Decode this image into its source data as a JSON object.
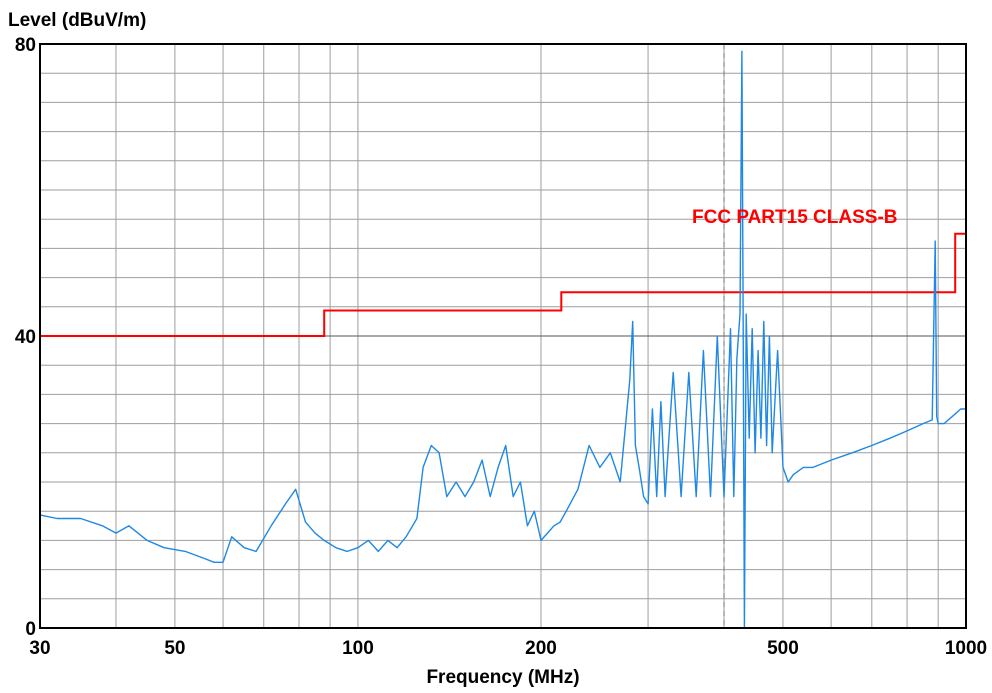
{
  "chart_data": {
    "type": "line",
    "ylabel": "Level (dBuV/m)",
    "xlabel": "Frequency (MHz)",
    "x_scale": "log",
    "xlim": [
      30,
      1000
    ],
    "ylim": [
      0,
      80
    ],
    "x_ticks": [
      "30",
      "50",
      "100",
      "200",
      "500",
      "1000"
    ],
    "y_ticks": [
      "0",
      "40",
      "80"
    ],
    "grid": true,
    "limit_line": {
      "name": "FCC PART15 CLASS-B",
      "color": "#ff0000",
      "points": [
        [
          30,
          40
        ],
        [
          88,
          40
        ],
        [
          88,
          43.5
        ],
        [
          216,
          43.5
        ],
        [
          216,
          46
        ],
        [
          960,
          46
        ],
        [
          960,
          54
        ],
        [
          1000,
          54
        ]
      ]
    },
    "marker": {
      "x": 400,
      "style": "dashed"
    },
    "series": [
      {
        "color": "#1e88e5",
        "x": [
          30,
          32,
          35,
          38,
          40,
          42,
          45,
          48,
          52,
          56,
          58,
          60,
          62,
          65,
          68,
          72,
          76,
          79,
          82,
          85,
          88,
          92,
          96,
          100,
          104,
          108,
          112,
          116,
          120,
          125,
          128,
          132,
          136,
          140,
          145,
          150,
          155,
          160,
          165,
          170,
          175,
          180,
          185,
          190,
          195,
          200,
          205,
          210,
          215,
          220,
          230,
          240,
          250,
          260,
          270,
          280,
          283,
          286,
          290,
          295,
          300,
          305,
          310,
          315,
          320,
          330,
          340,
          350,
          360,
          370,
          380,
          390,
          400,
          410,
          415,
          420,
          425,
          428,
          430,
          432,
          435,
          440,
          445,
          450,
          455,
          460,
          465,
          470,
          475,
          480,
          490,
          500,
          510,
          520,
          540,
          560,
          600,
          650,
          700,
          750,
          800,
          850,
          880,
          890,
          895,
          900,
          920,
          950,
          980,
          1000
        ],
        "values": [
          15.5,
          15,
          15,
          14,
          13,
          14,
          12,
          11,
          10.5,
          9.5,
          9,
          9,
          12.5,
          11,
          10.5,
          14,
          17,
          19,
          14.5,
          13,
          12,
          11,
          10.5,
          11,
          12,
          10.5,
          12,
          11,
          12.5,
          15,
          22,
          25,
          24,
          18,
          20,
          18,
          20,
          23,
          18,
          22,
          25,
          18,
          20,
          14,
          16,
          12,
          13,
          14,
          14.5,
          16,
          19,
          25,
          22,
          24,
          20,
          34,
          42,
          25,
          22,
          18,
          17,
          30,
          18,
          31,
          18,
          35,
          18,
          35,
          18,
          38,
          18,
          40,
          18,
          41,
          18,
          37,
          43,
          79,
          44,
          0,
          43,
          26,
          41,
          24,
          38,
          26,
          42,
          25,
          40,
          24,
          38,
          22,
          20,
          21,
          22,
          22,
          23,
          24,
          25,
          26,
          27,
          28,
          28.5,
          53,
          29,
          28,
          28,
          29,
          30,
          30
        ]
      }
    ]
  }
}
